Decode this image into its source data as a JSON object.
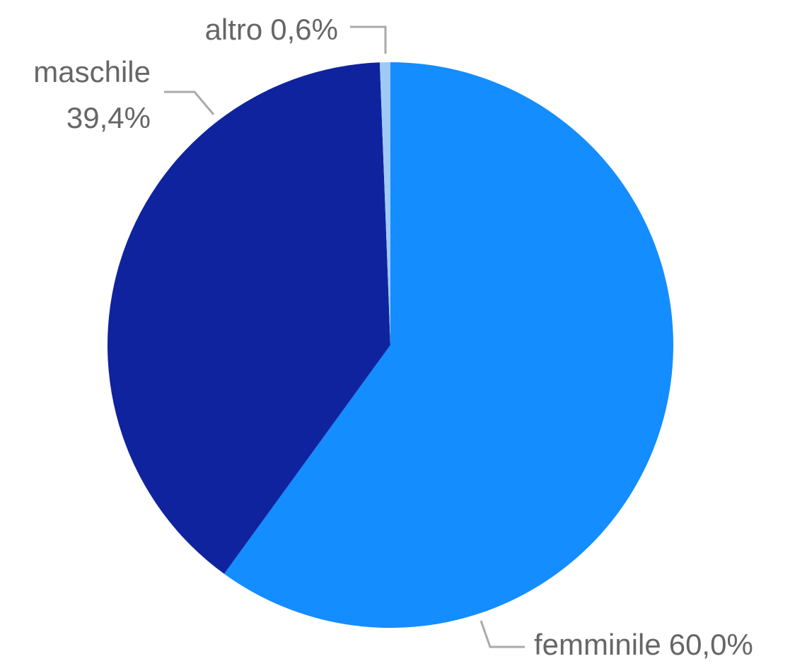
{
  "chart_data": {
    "type": "pie",
    "categories": [
      "femminile",
      "maschile",
      "altro"
    ],
    "values": [
      60.0,
      39.4,
      0.6
    ],
    "value_labels": [
      "60,0%",
      "39,4%",
      "0,6%"
    ],
    "colors": [
      "#138dff",
      "#10239e",
      "#9ecbf5"
    ]
  }
}
